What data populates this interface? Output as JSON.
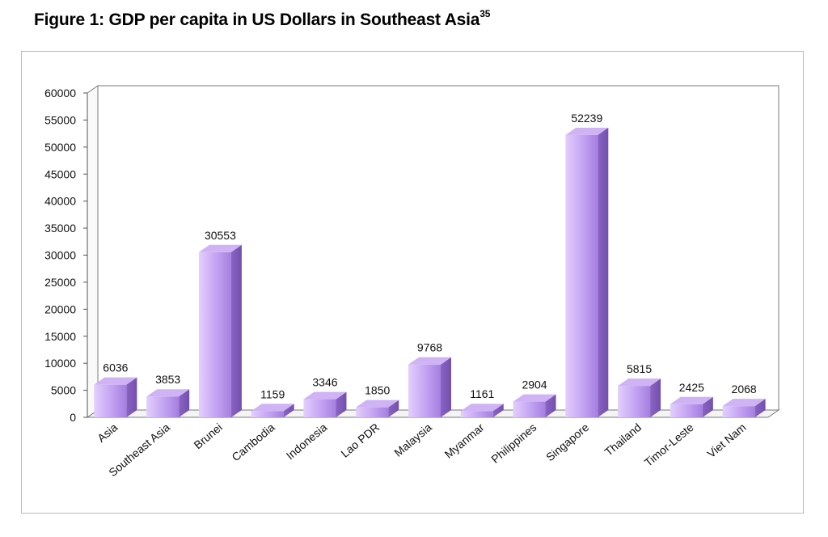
{
  "figure": {
    "title": "Figure 1: GDP per capita in US Dollars in Southeast Asia",
    "footnote_ref": "35"
  },
  "colors": {
    "bar_light": "#e2cdfb",
    "bar_mid": "#b892ee",
    "bar_dark": "#8a63c4",
    "bar_top": "#c9acf3",
    "axis": "#555555",
    "frame": "#bdbdbd"
  },
  "chart_data": {
    "type": "bar",
    "title": "Figure 1: GDP per capita in US Dollars in Southeast Asia",
    "xlabel": "",
    "ylabel": "",
    "ylim": [
      0,
      60000
    ],
    "yticks": [
      0,
      5000,
      10000,
      15000,
      20000,
      25000,
      30000,
      35000,
      40000,
      45000,
      50000,
      55000,
      60000
    ],
    "grid": false,
    "legend": "none",
    "style": "3d-column",
    "categories": [
      "Asia",
      "Southeast Asia",
      "Brunei",
      "Cambodia",
      "Indonesia",
      "Lao PDR",
      "Malaysia",
      "Myanmar",
      "Philippines",
      "Singapore",
      "Thailand",
      "Timor-Leste",
      "Viet Nam"
    ],
    "values": [
      6036,
      3853,
      30553,
      1159,
      3346,
      1850,
      9768,
      1161,
      2904,
      52239,
      5815,
      2425,
      2068
    ],
    "data_labels": [
      "6036",
      "3853",
      "30553",
      "1159",
      "3346",
      "1850",
      "9768",
      "1161",
      "2904",
      "52239",
      "5815",
      "2425",
      "2068"
    ]
  }
}
